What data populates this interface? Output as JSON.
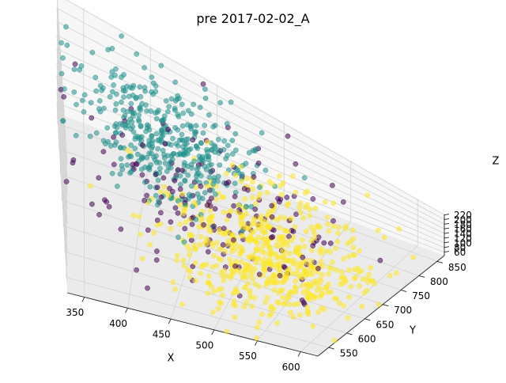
{
  "chart_data": {
    "type": "scatter3d",
    "title": "pre 2017-02-02_A",
    "xlabel": "X",
    "ylabel": "Y",
    "zlabel": "Z",
    "xlim": [
      330,
      620
    ],
    "ylim": [
      520,
      870
    ],
    "zlim": [
      45,
      222
    ],
    "xticks": [
      350,
      400,
      450,
      500,
      550,
      600
    ],
    "yticks": [
      550,
      600,
      650,
      700,
      750,
      800,
      850
    ],
    "zticks": [
      60,
      80,
      100,
      120,
      140,
      160,
      180,
      200,
      220
    ],
    "grid": true,
    "legend": "none",
    "colors": {
      "teal": "#21918c",
      "purple": "#440154",
      "yellow": "#fde725"
    },
    "clusters": [
      {
        "color": "#21918c",
        "center": [
          420,
          760,
          160
        ],
        "spread": [
          38,
          55,
          30
        ],
        "count": 420
      },
      {
        "color": "#fde725",
        "center": [
          525,
          660,
          120
        ],
        "spread": [
          45,
          70,
          35
        ],
        "count": 620
      },
      {
        "color": "#440154",
        "center": [
          470,
          700,
          140
        ],
        "spread": [
          60,
          80,
          40
        ],
        "count": 170
      }
    ]
  }
}
